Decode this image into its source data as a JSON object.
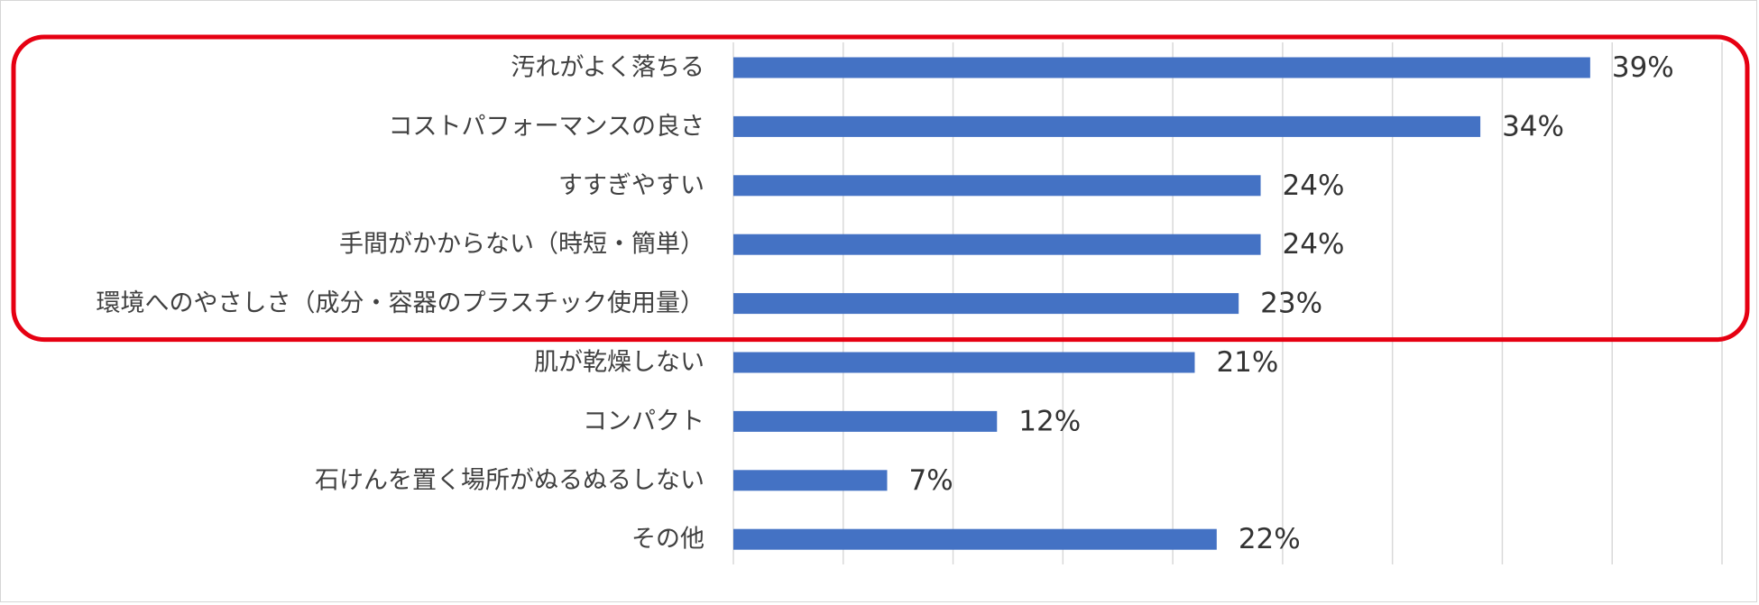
{
  "chart_data": {
    "type": "bar",
    "orientation": "horizontal",
    "categories": [
      "汚れがよく落ちる",
      "コストパフォーマンスの良さ",
      "すすぎやすい",
      "手間がかからない（時短・簡単）",
      "環境へのやさしさ（成分・容器のプラスチック使用量）",
      "肌が乾燥しない",
      "コンパクト",
      "石けんを置く場所がぬるぬるしない",
      "その他"
    ],
    "values": [
      39,
      34,
      24,
      24,
      23,
      21,
      12,
      7,
      22
    ],
    "value_labels": [
      "39%",
      "34%",
      "24%",
      "24%",
      "23%",
      "21%",
      "12%",
      "7%",
      "22%"
    ],
    "xlim": [
      0,
      45
    ],
    "grid": true,
    "legend": "none",
    "bar_color": "#4472c4",
    "highlight": {
      "color": "#e60012",
      "category_range": [
        0,
        4
      ]
    }
  }
}
